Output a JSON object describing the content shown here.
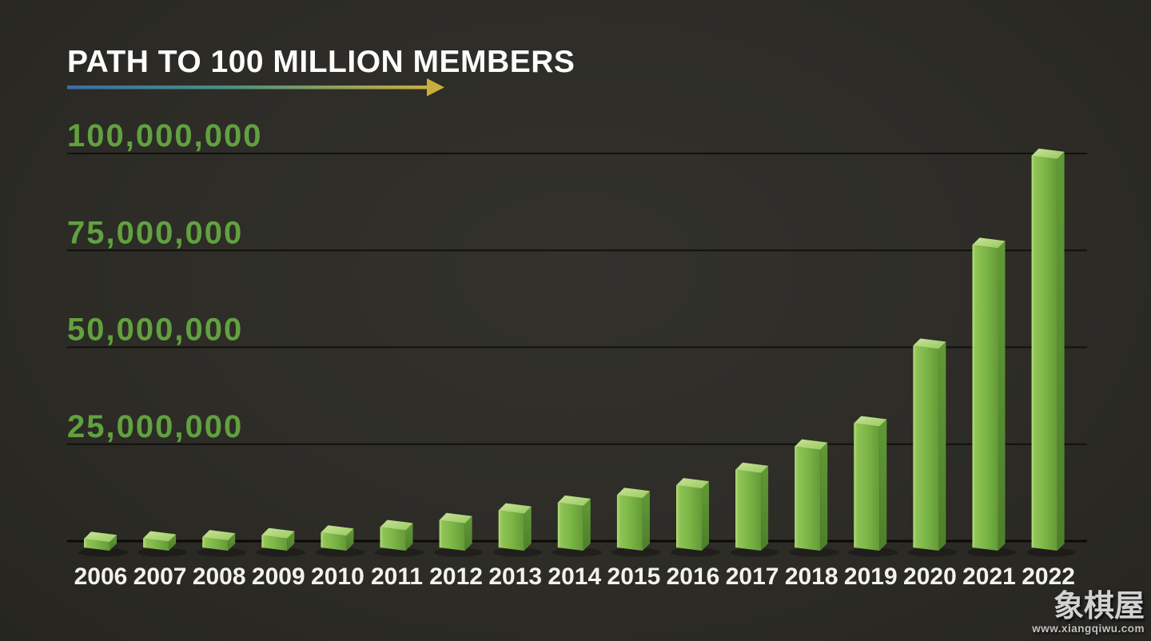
{
  "page": {
    "background_color": "#2d2c27"
  },
  "header": {
    "title": "PATH TO 100 MILLION MEMBERS",
    "arrow_gradient_colors": [
      "#3a6ea8",
      "#4b8f7f",
      "#c9ad3f"
    ]
  },
  "chart_data": {
    "type": "bar",
    "title": "PATH TO 100 MILLION MEMBERS",
    "categories": [
      "2006",
      "2007",
      "2008",
      "2009",
      "2010",
      "2011",
      "2012",
      "2013",
      "2014",
      "2015",
      "2016",
      "2017",
      "2018",
      "2019",
      "2020",
      "2021",
      "2022"
    ],
    "series": [
      {
        "name": "Members",
        "values_millions": [
          0.15,
          0.3,
          0.6,
          1.1,
          1.8,
          3.2,
          5,
          7.5,
          9.5,
          11.5,
          14,
          18,
          24,
          30,
          50,
          76,
          99
        ]
      }
    ],
    "xlabel": "",
    "ylabel": "",
    "ylim_millions": [
      0,
      100
    ],
    "y_axis": {
      "gridlines": true,
      "gridline_color": "#12100b",
      "tick_label_color": "#61a13f",
      "ticks": [
        {
          "label": "100,000,000",
          "value_millions": 100
        },
        {
          "label": "75,000,000",
          "value_millions": 75
        },
        {
          "label": "50,000,000",
          "value_millions": 50
        },
        {
          "label": "25,000,000",
          "value_millions": 25
        }
      ]
    },
    "x_axis": {
      "tick_label_color": "#f2f1ee"
    },
    "bar_style": {
      "top": "#c3e293",
      "front": "#7cb747",
      "side": "#5c9133"
    },
    "legend": "none"
  },
  "watermark": {
    "title": "象棋屋",
    "url": "www.xiangqiwu.com"
  }
}
